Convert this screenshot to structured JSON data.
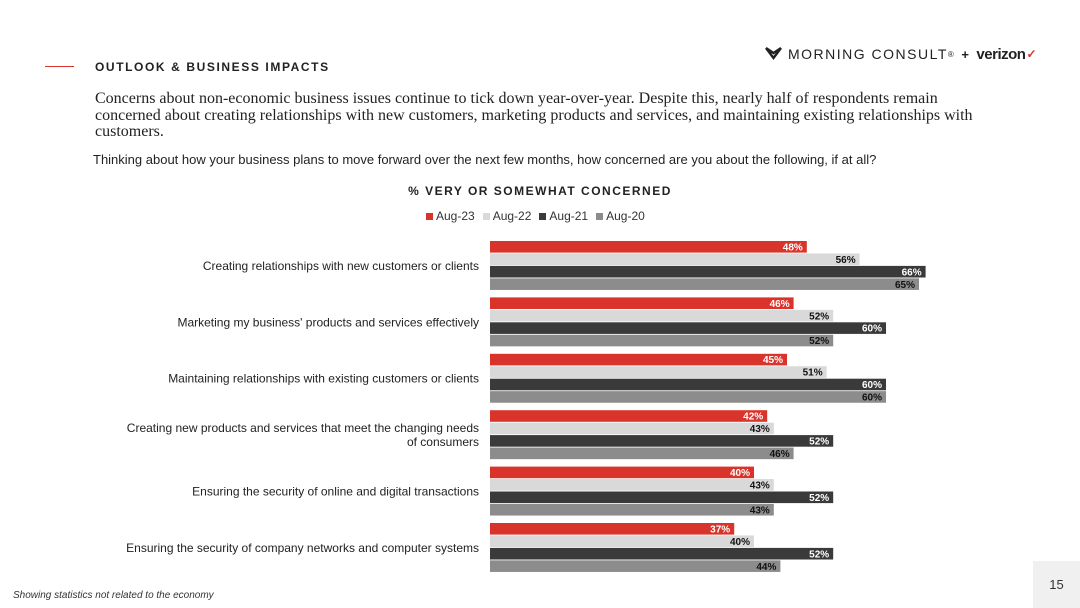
{
  "header": {
    "section_label": "OUTLOOK & BUSINESS IMPACTS",
    "logo_morning_consult": "MORNING CONSULT",
    "logo_reg": "®",
    "logo_plus": "+",
    "logo_verizon": "verizon",
    "logo_check": "✓"
  },
  "headline": "Concerns about non-economic business issues continue to tick down year-over-year. Despite this, nearly half of respondents remain concerned about creating relationships with new customers, marketing products and services, and maintaining existing relationships with customers.",
  "question": "Thinking about how your business plans to move forward over the next few months, how concerned are you about the following, if at all?",
  "footnote": "Showing statistics not related to the economy",
  "page_number": "15",
  "colors": {
    "accent": "#d9342b",
    "aug23": "#d9342b",
    "aug22": "#d9d9d9",
    "aug21": "#3a3a3a",
    "aug20": "#8c8c8c"
  },
  "chart_data": {
    "type": "bar",
    "orientation": "horizontal",
    "title": "% VERY OR SOMEWHAT CONCERNED",
    "legend_position": "top",
    "xlim": [
      0,
      100
    ],
    "grid": false,
    "categories": [
      "Creating relationships with new customers or clients",
      "Marketing my business' products and services effectively",
      "Maintaining relationships with existing customers or clients",
      "Creating new products and services that meet the changing needs of consumers",
      "Ensuring the security of online and digital transactions",
      "Ensuring the security of company networks and computer systems"
    ],
    "series": [
      {
        "name": "Aug-23",
        "color": "#d9342b",
        "values": [
          48,
          46,
          45,
          42,
          40,
          37
        ]
      },
      {
        "name": "Aug-22",
        "color": "#d9d9d9",
        "values": [
          56,
          52,
          51,
          43,
          43,
          40
        ]
      },
      {
        "name": "Aug-21",
        "color": "#3a3a3a",
        "values": [
          66,
          60,
          60,
          52,
          52,
          52
        ]
      },
      {
        "name": "Aug-20",
        "color": "#8c8c8c",
        "values": [
          65,
          52,
          60,
          46,
          43,
          44
        ]
      }
    ]
  }
}
